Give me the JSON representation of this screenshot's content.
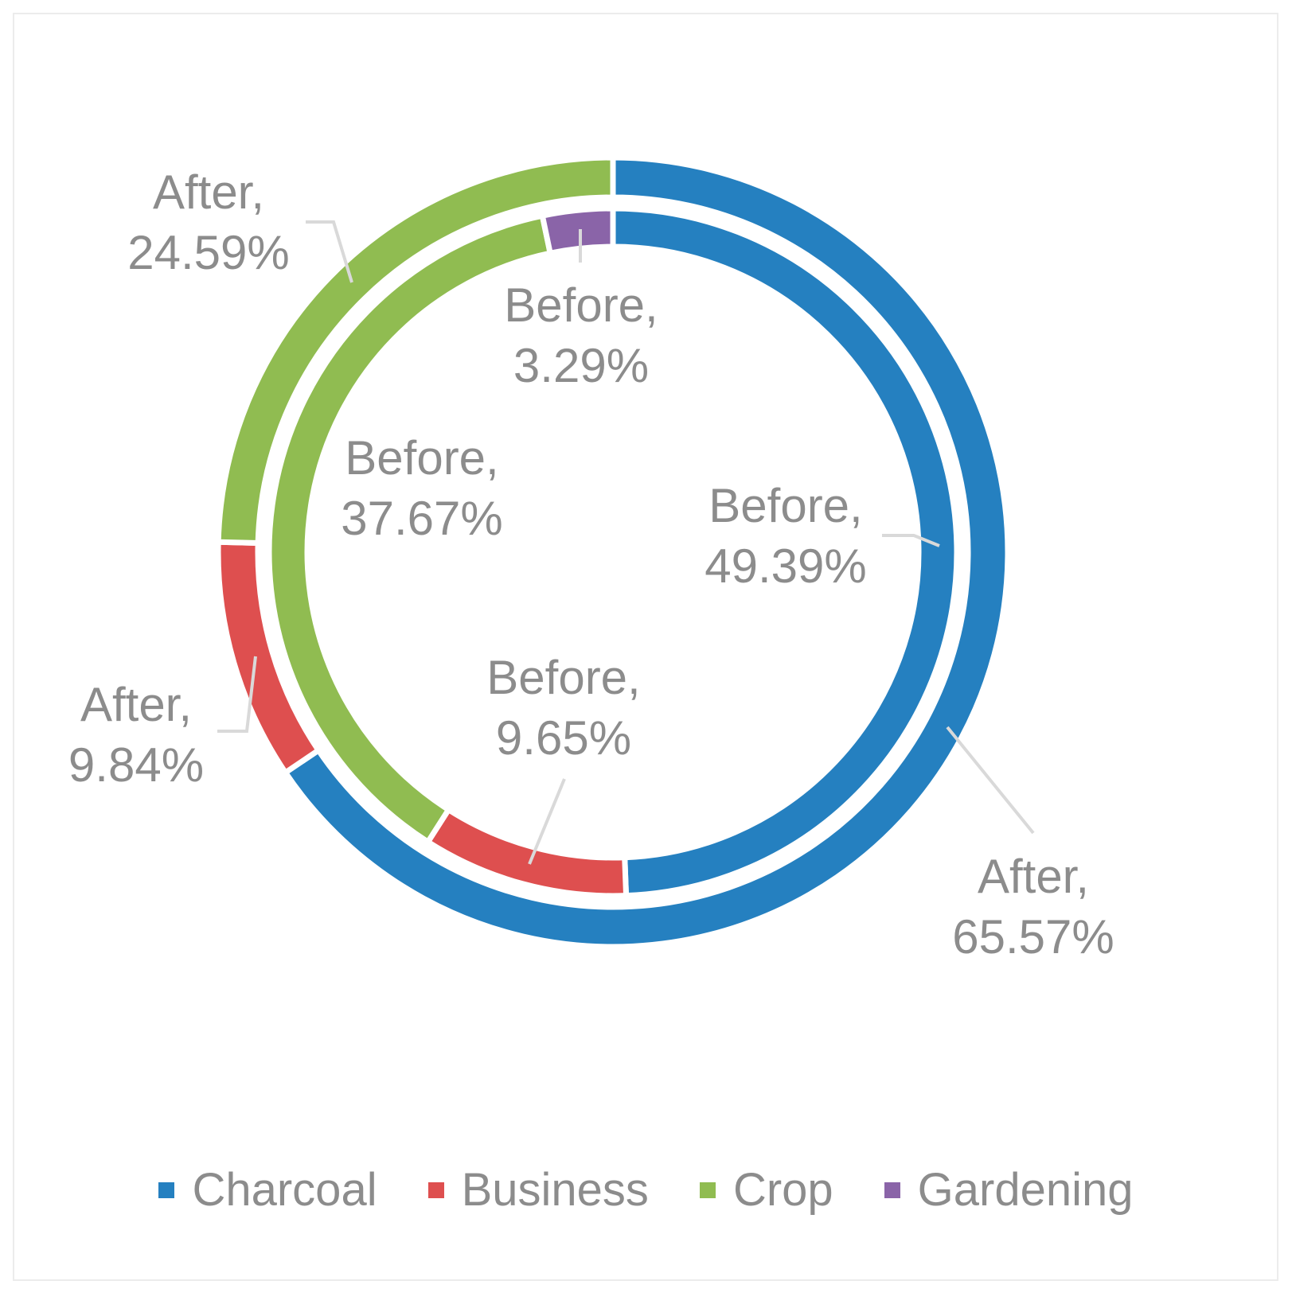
{
  "chart_data": {
    "type": "donut",
    "rings": [
      {
        "name": "Before",
        "ring": "inner",
        "values": [
          49.39,
          9.65,
          37.67,
          3.29
        ],
        "labels": [
          "Before, 49.39%",
          "Before, 9.65%",
          "Before, 37.67%",
          "Before, 3.29%"
        ]
      },
      {
        "name": "After",
        "ring": "outer",
        "values": [
          65.57,
          9.84,
          24.59,
          0
        ],
        "labels": [
          "After, 65.57%",
          "After, 9.84%",
          "After, 24.59%",
          ""
        ]
      }
    ],
    "categories": [
      "Charcoal",
      "Business",
      "Crop",
      "Gardening"
    ],
    "colors": [
      "#2580C0",
      "#DE4F4F",
      "#90BC51",
      "#8A64A8"
    ],
    "legend_position": "bottom"
  }
}
